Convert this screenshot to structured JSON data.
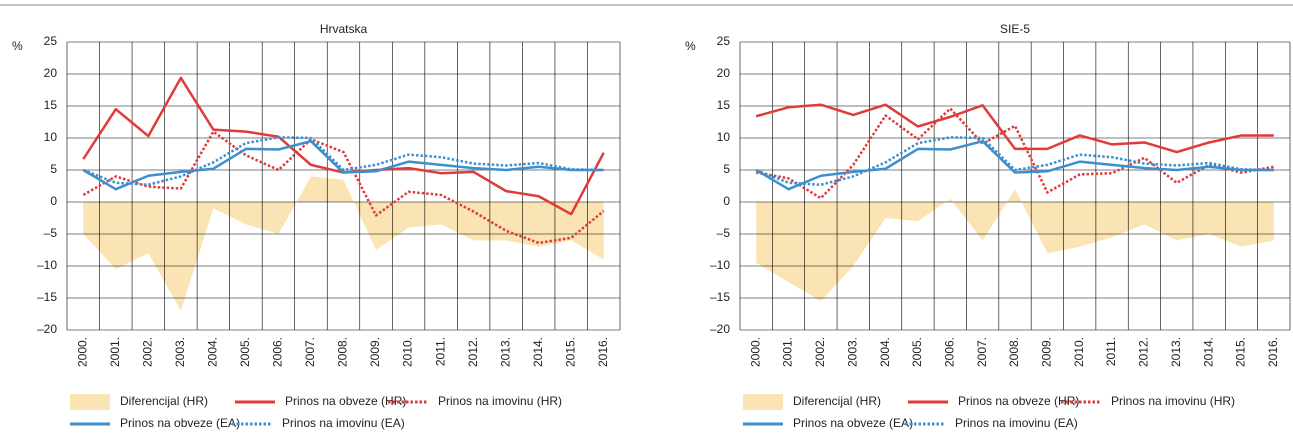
{
  "chart_data": [
    {
      "type": "line",
      "title": "Hrvatska",
      "y_label": "%",
      "categories": [
        "2000.",
        "2001.",
        "2002.",
        "2003.",
        "2004.",
        "2005.",
        "2006.",
        "2007.",
        "2008.",
        "2009.",
        "2010.",
        "2011.",
        "2012.",
        "2013.",
        "2014.",
        "2015.",
        "2016."
      ],
      "ylim": [
        -20,
        25
      ],
      "yticks": [
        {
          "value": -20,
          "label": "–20"
        },
        {
          "value": -15,
          "label": "–15"
        },
        {
          "value": -10,
          "label": "–10"
        },
        {
          "value": -5,
          "label": "–5"
        },
        0,
        5,
        10,
        15,
        20,
        25
      ],
      "grid": true,
      "series": [
        {
          "name": "Diferencijal (HR)",
          "style": "area",
          "color": "#fbe4b4",
          "values": [
            -5,
            -10.5,
            -8,
            -17,
            -1,
            -3.5,
            -5,
            4,
            3.5,
            -7.5,
            -4,
            -3.5,
            -6,
            -6,
            -7,
            -6,
            -9
          ]
        },
        {
          "name": "Prinos na obveze (HR)",
          "style": "solid",
          "color": "#e03a3a",
          "values": [
            6.7,
            14.5,
            10.3,
            19.4,
            11.3,
            11,
            10.2,
            5.8,
            4.6,
            5,
            5.3,
            4.5,
            4.7,
            1.7,
            0.9,
            -1.9,
            7.7
          ]
        },
        {
          "name": "Prinos na imovinu (HR)",
          "style": "dotted",
          "color": "#e03a3a",
          "values": [
            1.1,
            4,
            2.4,
            2.1,
            11,
            7.3,
            5,
            9.8,
            7.8,
            -2.1,
            1.6,
            1.1,
            -1.5,
            -4.5,
            -6.4,
            -5.6,
            -1.4
          ]
        },
        {
          "name": "Prinos na obveze (EA)",
          "style": "solid",
          "color": "#3d8fcf",
          "values": [
            5,
            2,
            4.1,
            4.7,
            5.2,
            8.3,
            8.2,
            9.5,
            4.6,
            4.8,
            6.3,
            5.8,
            5.3,
            5,
            5.5,
            5,
            5
          ]
        },
        {
          "name": "Prinos na imovinu (EA)",
          "style": "dotted",
          "color": "#3d8fcf",
          "values": [
            5,
            3,
            2.7,
            4,
            6.2,
            9.2,
            10.1,
            10,
            5,
            5.8,
            7.4,
            7,
            6,
            5.7,
            6.1,
            5.1,
            5
          ]
        }
      ]
    },
    {
      "type": "line",
      "title": "SIE-5",
      "y_label": "%",
      "categories": [
        "2000.",
        "2001.",
        "2002.",
        "2003.",
        "2004.",
        "2005.",
        "2006.",
        "2007.",
        "2008.",
        "2009.",
        "2010.",
        "2011.",
        "2012.",
        "2013.",
        "2014.",
        "2015.",
        "2016."
      ],
      "ylim": [
        -20,
        25
      ],
      "yticks": [
        {
          "value": -20,
          "label": "–20"
        },
        {
          "value": -15,
          "label": "–15"
        },
        {
          "value": -10,
          "label": "–10"
        },
        {
          "value": -5,
          "label": "–5"
        },
        0,
        5,
        10,
        15,
        20,
        25
      ],
      "grid": true,
      "series": [
        {
          "name": "Diferencijal (HR)",
          "style": "area",
          "color": "#fbe4b4",
          "values": [
            -9.5,
            -12.5,
            -15.5,
            -10,
            -2.5,
            -3,
            0.5,
            -6,
            2,
            -8,
            -7,
            -5.5,
            -3.5,
            -6,
            -5,
            -7,
            -6
          ]
        },
        {
          "name": "Prinos na obveze (HR)",
          "style": "solid",
          "color": "#e03a3a",
          "values": [
            13.4,
            14.8,
            15.2,
            13.6,
            15.2,
            11.8,
            13.3,
            15.1,
            8.3,
            8.3,
            10.4,
            9,
            9.3,
            7.8,
            9.3,
            10.4,
            10.4
          ]
        },
        {
          "name": "Prinos na imovinu (HR)",
          "style": "dotted",
          "color": "#e03a3a",
          "values": [
            4.6,
            3.7,
            0.6,
            5.8,
            13.5,
            9.8,
            14.6,
            9.1,
            11.9,
            1.5,
            4.3,
            4.5,
            6.9,
            3,
            5.8,
            4.6,
            5.5
          ]
        },
        {
          "name": "Prinos na obveze (EA)",
          "style": "solid",
          "color": "#3d8fcf",
          "values": [
            5,
            2,
            4.1,
            4.7,
            5.2,
            8.3,
            8.2,
            9.5,
            4.6,
            4.8,
            6.3,
            5.8,
            5.3,
            5,
            5.5,
            5,
            5
          ]
        },
        {
          "name": "Prinos na imovinu (EA)",
          "style": "dotted",
          "color": "#3d8fcf",
          "values": [
            5,
            3,
            2.7,
            4,
            6.2,
            9.2,
            10.1,
            10,
            5,
            5.8,
            7.4,
            7,
            6,
            5.7,
            6.1,
            5.1,
            5
          ]
        }
      ]
    }
  ]
}
